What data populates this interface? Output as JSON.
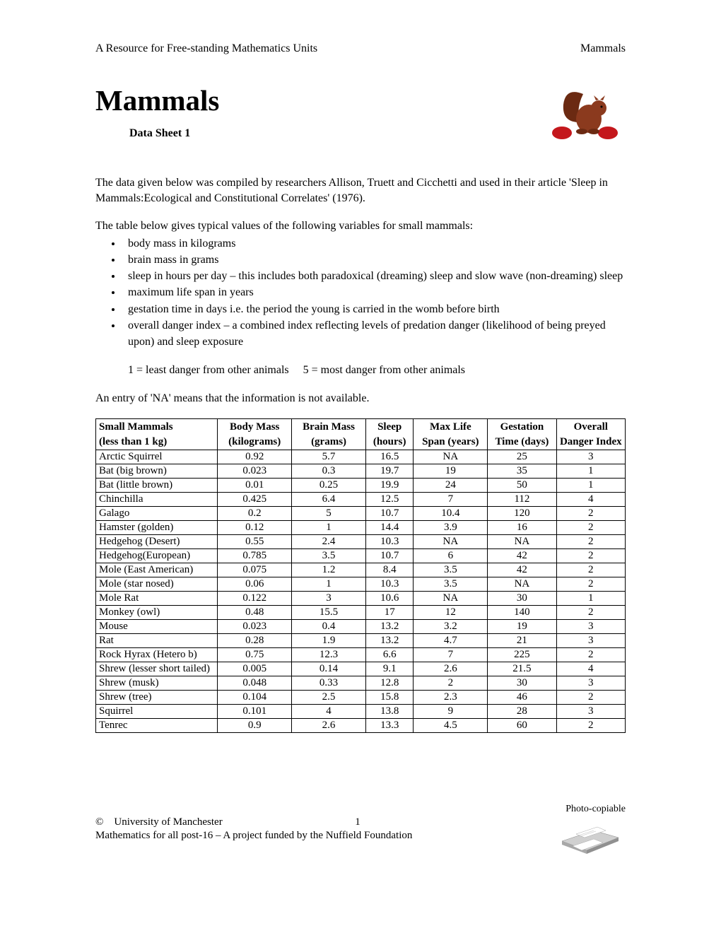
{
  "header": {
    "left": "A Resource for Free-standing Mathematics Units",
    "right": "Mammals"
  },
  "title": "Mammals",
  "subtitle": "Data Sheet 1",
  "intro": {
    "p1": "The data given below was compiled by researchers Allison, Truett and Cicchetti and used in their article 'Sleep in Mammals:Ecological and Constitutional Correlates' (1976).",
    "p2": "The table below gives typical values of the following variables for small mammals:",
    "bullets": [
      "body mass in kilograms",
      "brain mass in grams",
      "sleep in hours per day – this includes both paradoxical (dreaming) sleep and slow wave (non-dreaming) sleep",
      "maximum life span in years",
      "gestation time in days i.e. the period the young is carried in the womb before birth",
      "overall danger index – a combined index reflecting levels of predation danger (likelihood of being preyed upon) and sleep exposure"
    ],
    "legend": "1 = least danger from other animals     5 = most danger from other animals",
    "p3": "An entry of 'NA' means that the information is not available."
  },
  "table": {
    "columns": [
      {
        "l1": "Small Mammals",
        "l2": "(less than 1 kg)"
      },
      {
        "l1": "Body Mass",
        "l2": "(kilograms)"
      },
      {
        "l1": "Brain Mass",
        "l2": "(grams)"
      },
      {
        "l1": "Sleep",
        "l2": "(hours)"
      },
      {
        "l1": "Max Life",
        "l2": "Span (years)"
      },
      {
        "l1": "Gestation",
        "l2": "Time (days)"
      },
      {
        "l1": "Overall",
        "l2": "Danger Index"
      }
    ],
    "rows": [
      [
        "Arctic Squirrel",
        "0.92",
        "5.7",
        "16.5",
        "NA",
        "25",
        "3"
      ],
      [
        "Bat (big brown)",
        "0.023",
        "0.3",
        "19.7",
        "19",
        "35",
        "1"
      ],
      [
        "Bat (little brown)",
        "0.01",
        "0.25",
        "19.9",
        "24",
        "50",
        "1"
      ],
      [
        "Chinchilla",
        "0.425",
        "6.4",
        "12.5",
        "7",
        "112",
        "4"
      ],
      [
        "Galago",
        "0.2",
        "5",
        "10.7",
        "10.4",
        "120",
        "2"
      ],
      [
        "Hamster (golden)",
        "0.12",
        "1",
        "14.4",
        "3.9",
        "16",
        "2"
      ],
      [
        "Hedgehog (Desert)",
        "0.55",
        "2.4",
        "10.3",
        "NA",
        "NA",
        "2"
      ],
      [
        "Hedgehog(European)",
        "0.785",
        "3.5",
        "10.7",
        "6",
        "42",
        "2"
      ],
      [
        "Mole (East American)",
        "0.075",
        "1.2",
        "8.4",
        "3.5",
        "42",
        "2"
      ],
      [
        "Mole (star nosed)",
        "0.06",
        "1",
        "10.3",
        "3.5",
        "NA",
        "2"
      ],
      [
        "Mole Rat",
        "0.122",
        "3",
        "10.6",
        "NA",
        "30",
        "1"
      ],
      [
        "Monkey (owl)",
        "0.48",
        "15.5",
        "17",
        "12",
        "140",
        "2"
      ],
      [
        "Mouse",
        "0.023",
        "0.4",
        "13.2",
        "3.2",
        "19",
        "3"
      ],
      [
        "Rat",
        "0.28",
        "1.9",
        "13.2",
        "4.7",
        "21",
        "3"
      ],
      [
        "Rock Hyrax (Hetero b)",
        "0.75",
        "12.3",
        "6.6",
        "7",
        "225",
        "2"
      ],
      [
        "Shrew (lesser short tailed)",
        "0.005",
        "0.14",
        "9.1",
        "2.6",
        "21.5",
        "4"
      ],
      [
        "Shrew (musk)",
        "0.048",
        "0.33",
        "12.8",
        "2",
        "30",
        "3"
      ],
      [
        "Shrew (tree)",
        "0.104",
        "2.5",
        "15.8",
        "2.3",
        "46",
        "2"
      ],
      [
        "Squirrel",
        "0.101",
        "4",
        "13.8",
        "9",
        "28",
        "3"
      ],
      [
        "Tenrec",
        "0.9",
        "2.6",
        "13.3",
        "4.5",
        "60",
        "2"
      ]
    ]
  },
  "footer": {
    "photo": "Photo-copiable",
    "copyright": "©    University of Manchester",
    "pagenum": "1",
    "line2": "Mathematics for all post-16 – A project funded by the Nuffield Foundation"
  },
  "colors": {
    "squirrel_body": "#8b3a1e",
    "squirrel_tail": "#6b2a12",
    "apple": "#c4171c"
  }
}
